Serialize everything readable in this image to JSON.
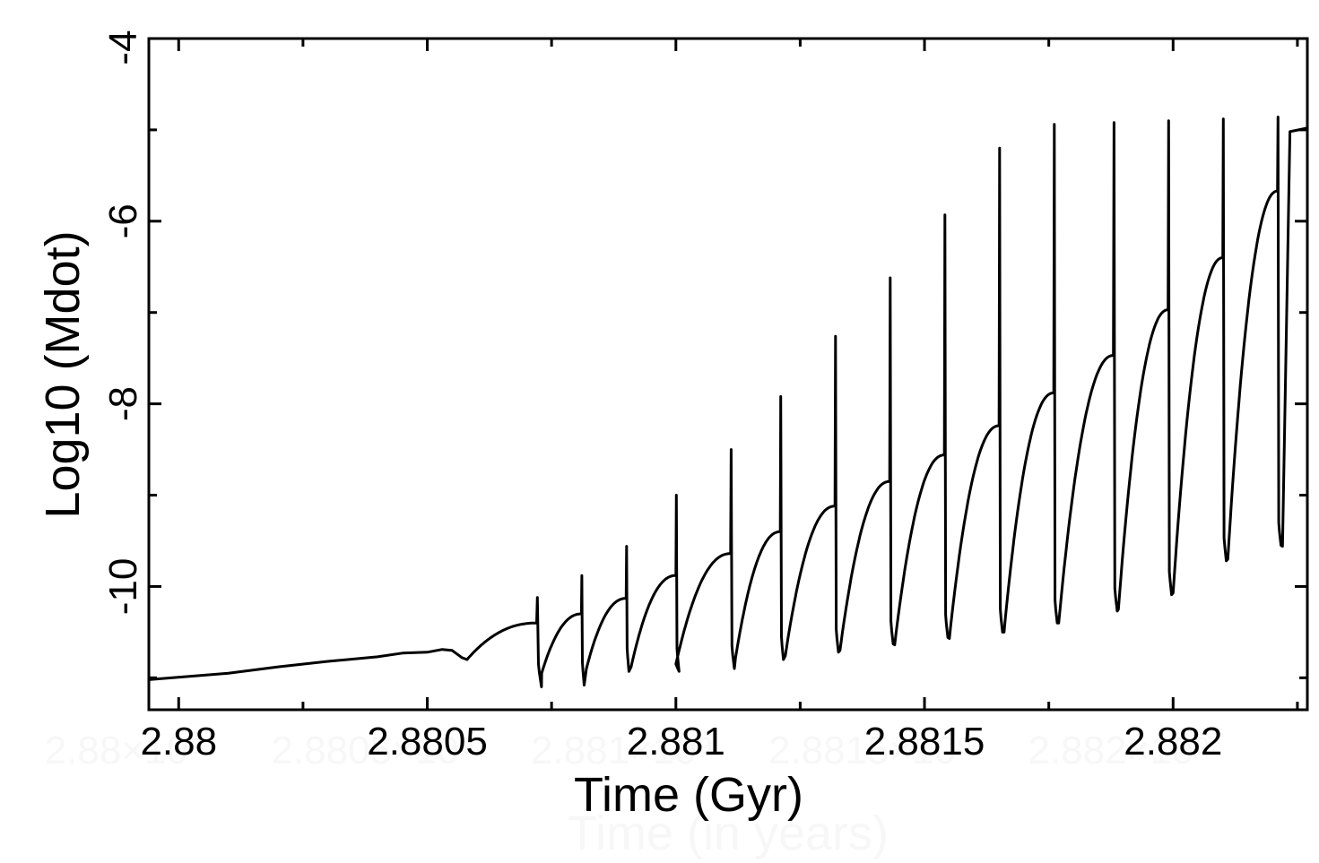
{
  "chart_data": {
    "type": "line",
    "xlabel": "Time (Gyr)",
    "ylabel": "Log10 (Mdot)",
    "xlim": [
      2.87994,
      2.88227
    ],
    "ylim": [
      -11.35,
      -4.0
    ],
    "xticks": [
      {
        "value": 2.88,
        "label": "2.88"
      },
      {
        "value": 2.8805,
        "label": "2.8805"
      },
      {
        "value": 2.881,
        "label": "2.881"
      },
      {
        "value": 2.8815,
        "label": "2.8815"
      },
      {
        "value": 2.882,
        "label": "2.882"
      }
    ],
    "yticks": [
      {
        "value": -4,
        "label": "-4"
      },
      {
        "value": -6,
        "label": "-6"
      },
      {
        "value": -8,
        "label": "-8"
      },
      {
        "value": -10,
        "label": "-10"
      }
    ],
    "ghost_text": {
      "xticks": [
        "2.88×10⁹",
        "2.8805×10⁹",
        "2.881×10⁹",
        "2.8815×10⁹",
        "2.882×10⁹"
      ],
      "xlabel": "Time (in years)"
    },
    "grid": false,
    "legend": "none",
    "series": [
      {
        "color": "#000000",
        "baseline": [
          [
            2.87994,
            -11.02
          ],
          [
            2.8801,
            -10.95
          ],
          [
            2.8802,
            -10.88
          ],
          [
            2.8803,
            -10.82
          ],
          [
            2.8804,
            -10.77
          ],
          [
            2.88045,
            -10.73
          ],
          [
            2.8805,
            -10.72
          ],
          [
            2.88053,
            -10.69
          ],
          [
            2.88055,
            -10.7
          ],
          [
            2.88057,
            -10.78
          ],
          [
            2.88058,
            -10.8
          ]
        ],
        "cycles": [
          {
            "start": 2.88058,
            "end": 2.88072,
            "start_y": -10.8,
            "peak_y": -10.4,
            "spike_y": -10.12,
            "dip_y": -11.1
          },
          {
            "start": 2.88073,
            "end": 2.88081,
            "start_y": -10.95,
            "peak_y": -10.3,
            "spike_y": -9.88,
            "dip_y": -11.08
          },
          {
            "start": 2.88082,
            "end": 2.8809,
            "start_y": -10.9,
            "peak_y": -10.13,
            "spike_y": -9.56,
            "dip_y": -10.93
          },
          {
            "start": 2.88091,
            "end": 2.881,
            "start_y": -10.88,
            "peak_y": -9.88,
            "spike_y": -9.0,
            "dip_y": -10.93
          },
          {
            "start": 2.881,
            "end": 2.88111,
            "start_y": -10.85,
            "peak_y": -9.64,
            "spike_y": -8.5,
            "dip_y": -10.9
          },
          {
            "start": 2.88112,
            "end": 2.88121,
            "start_y": -10.78,
            "peak_y": -9.4,
            "spike_y": -7.92,
            "dip_y": -10.8
          },
          {
            "start": 2.88122,
            "end": 2.88132,
            "start_y": -10.76,
            "peak_y": -9.12,
            "spike_y": -7.26,
            "dip_y": -10.72
          },
          {
            "start": 2.88133,
            "end": 2.88143,
            "start_y": -10.7,
            "peak_y": -8.85,
            "spike_y": -6.62,
            "dip_y": -10.63
          },
          {
            "start": 2.88144,
            "end": 2.88154,
            "start_y": -10.64,
            "peak_y": -8.56,
            "spike_y": -5.93,
            "dip_y": -10.56
          },
          {
            "start": 2.88155,
            "end": 2.88165,
            "start_y": -10.57,
            "peak_y": -8.24,
            "spike_y": -5.2,
            "dip_y": -10.5
          },
          {
            "start": 2.88166,
            "end": 2.88176,
            "start_y": -10.5,
            "peak_y": -7.88,
            "spike_y": -4.94,
            "dip_y": -10.4
          },
          {
            "start": 2.88177,
            "end": 2.88188,
            "start_y": -10.4,
            "peak_y": -7.47,
            "spike_y": -4.92,
            "dip_y": -10.27
          },
          {
            "start": 2.88189,
            "end": 2.88199,
            "start_y": -10.25,
            "peak_y": -6.97,
            "spike_y": -4.9,
            "dip_y": -10.09
          },
          {
            "start": 2.882,
            "end": 2.8821,
            "start_y": -10.07,
            "peak_y": -6.4,
            "spike_y": -4.88,
            "dip_y": -9.72
          },
          {
            "start": 2.88211,
            "end": 2.88221,
            "start_y": -9.7,
            "peak_y": -5.67,
            "spike_y": -4.86,
            "dip_y": -9.55
          }
        ],
        "tail": [
          [
            2.88222,
            -9.56
          ],
          [
            2.882235,
            -5.02
          ],
          [
            2.88227,
            -4.98
          ]
        ]
      }
    ]
  }
}
